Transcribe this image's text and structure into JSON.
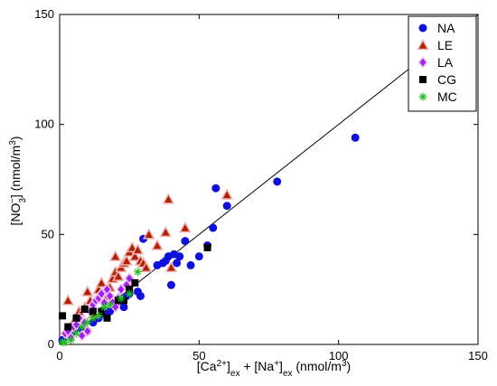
{
  "chart_data": {
    "type": "scatter",
    "xlabel": {
      "base": "[Ca",
      "sup1": "2+",
      "mid": "]",
      "sub1": "ex",
      "plus": " + [Na",
      "sup2": "+",
      "mid2": "]",
      "sub2": "ex",
      "unit": " (nmol/m",
      "sup3": "3",
      "end": ")"
    },
    "ylabel": {
      "base": "[NO",
      "sub": "3",
      "sup": "−",
      "mid": "]  (nmol/m",
      "sup2": "3",
      "end": ")"
    },
    "xlim": [
      0,
      150
    ],
    "ylim": [
      0,
      150
    ],
    "xticks": [
      "0",
      "50",
      "100",
      "150"
    ],
    "yticks": [
      "0",
      "50",
      "100",
      "150"
    ],
    "grid": false,
    "legend_position": "top-right",
    "reference_line": {
      "x": [
        0,
        150
      ],
      "y": [
        0,
        150
      ]
    },
    "series": [
      {
        "name": "NA",
        "marker": "circle",
        "color": "#1010dd",
        "points": [
          [
            1,
            2
          ],
          [
            3,
            4
          ],
          [
            5,
            6
          ],
          [
            8,
            7
          ],
          [
            10,
            6
          ],
          [
            12,
            10
          ],
          [
            14,
            12
          ],
          [
            16,
            14
          ],
          [
            18,
            15
          ],
          [
            20,
            18
          ],
          [
            22,
            20
          ],
          [
            23,
            17
          ],
          [
            24,
            22
          ],
          [
            25,
            23
          ],
          [
            28,
            24
          ],
          [
            29,
            22
          ],
          [
            30,
            48
          ],
          [
            35,
            36
          ],
          [
            37,
            37
          ],
          [
            38,
            38
          ],
          [
            39,
            40
          ],
          [
            40,
            27
          ],
          [
            41,
            41
          ],
          [
            42,
            37
          ],
          [
            43,
            40
          ],
          [
            45,
            47
          ],
          [
            47,
            36
          ],
          [
            50,
            40
          ],
          [
            53,
            45
          ],
          [
            55,
            53
          ],
          [
            56,
            71
          ],
          [
            60,
            63
          ],
          [
            78,
            74
          ],
          [
            106,
            94
          ]
        ]
      },
      {
        "name": "LE",
        "marker": "triangle",
        "color": "#b02000",
        "points": [
          [
            3,
            20
          ],
          [
            5,
            10
          ],
          [
            7,
            15
          ],
          [
            9,
            17
          ],
          [
            10,
            24
          ],
          [
            11,
            20
          ],
          [
            12,
            14
          ],
          [
            14,
            25
          ],
          [
            15,
            28
          ],
          [
            17,
            22
          ],
          [
            18,
            26
          ],
          [
            19,
            30
          ],
          [
            20,
            33
          ],
          [
            20,
            40
          ],
          [
            21,
            31
          ],
          [
            22,
            35
          ],
          [
            23,
            37
          ],
          [
            24,
            38
          ],
          [
            25,
            42
          ],
          [
            26,
            44
          ],
          [
            27,
            40
          ],
          [
            28,
            43
          ],
          [
            29,
            38
          ],
          [
            30,
            37
          ],
          [
            31,
            35
          ],
          [
            32,
            50
          ],
          [
            35,
            45
          ],
          [
            38,
            51
          ],
          [
            39,
            66
          ],
          [
            40,
            35
          ],
          [
            45,
            53
          ],
          [
            60,
            68
          ]
        ]
      },
      {
        "name": "LA",
        "marker": "diamond",
        "color": "#a020f0",
        "points": [
          [
            2,
            5
          ],
          [
            3,
            6
          ],
          [
            4,
            3
          ],
          [
            5,
            8
          ],
          [
            6,
            9
          ],
          [
            7,
            12
          ],
          [
            8,
            4
          ],
          [
            9,
            10
          ],
          [
            10,
            6
          ],
          [
            11,
            15
          ],
          [
            12,
            18
          ],
          [
            13,
            20
          ],
          [
            14,
            21
          ],
          [
            15,
            23
          ],
          [
            16,
            19
          ],
          [
            17,
            25
          ],
          [
            18,
            22
          ],
          [
            19,
            19
          ],
          [
            20,
            17
          ],
          [
            21,
            21
          ],
          [
            22,
            25
          ],
          [
            24,
            27
          ],
          [
            25,
            30
          ]
        ]
      },
      {
        "name": "CG",
        "marker": "square",
        "color": "#000000",
        "points": [
          [
            1,
            13
          ],
          [
            3,
            8
          ],
          [
            6,
            12
          ],
          [
            9,
            16
          ],
          [
            12,
            15
          ],
          [
            15,
            15
          ],
          [
            17,
            12
          ],
          [
            21,
            20
          ],
          [
            23,
            20
          ],
          [
            25,
            25
          ],
          [
            27,
            28
          ],
          [
            53,
            44
          ]
        ]
      },
      {
        "name": "MC",
        "marker": "asterisk",
        "color": "#20c020",
        "points": [
          [
            1,
            1
          ],
          [
            2,
            1
          ],
          [
            4,
            2
          ],
          [
            6,
            5
          ],
          [
            8,
            8
          ],
          [
            10,
            10
          ],
          [
            12,
            12
          ],
          [
            14,
            13
          ],
          [
            16,
            17
          ],
          [
            18,
            18
          ],
          [
            22,
            21
          ],
          [
            25,
            23
          ],
          [
            28,
            33
          ]
        ]
      }
    ]
  }
}
